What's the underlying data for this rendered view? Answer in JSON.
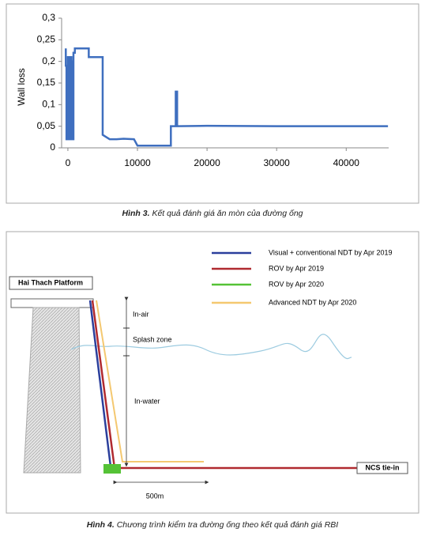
{
  "chart_data": {
    "type": "line",
    "y_label": "Wall loss",
    "xlim": [
      -900,
      46100
    ],
    "ylim": [
      0,
      0.3
    ],
    "xticks": [
      0,
      10000,
      20000,
      30000,
      40000
    ],
    "yticks": [
      0,
      {
        "value": 0.05,
        "label": "0,05"
      },
      {
        "value": 0.1,
        "label": "0,1"
      },
      {
        "value": 0.15,
        "label": "0,15"
      },
      {
        "value": 0.2,
        "label": "0,2"
      },
      {
        "value": 0.25,
        "label": "0,25"
      },
      {
        "value": 0.3,
        "label": "0,3"
      }
    ],
    "x": [
      -300,
      -300,
      -200,
      -200,
      0,
      0,
      100,
      100,
      300,
      300,
      500,
      500,
      600,
      600,
      700,
      700,
      800,
      800,
      1000,
      1000,
      3000,
      3000,
      5000,
      5000,
      6000,
      7000,
      8000,
      9500,
      10000,
      14800,
      14800,
      15500,
      15500,
      15700,
      15700,
      20000,
      30000,
      46000
    ],
    "series": [
      {
        "color": "#3f6fbf",
        "values": [
          0.23,
          0.19,
          0.19,
          0.02,
          0.02,
          0.21,
          0.21,
          0.02,
          0.02,
          0.21,
          0.21,
          0.02,
          0.02,
          0.2,
          0.2,
          0.02,
          0.02,
          0.22,
          0.22,
          0.23,
          0.23,
          0.21,
          0.21,
          0.03,
          0.02,
          0.02,
          0.021,
          0.02,
          0.005,
          0.005,
          0.05,
          0.05,
          0.13,
          0.13,
          0.05,
          0.051,
          0.05,
          0.05
        ]
      }
    ]
  },
  "captions": [
    {
      "label": "Hình 3.",
      "text": "Kết quả đánh giá ăn mòn của đường ống"
    },
    {
      "label": "Hình 4.",
      "text": "Chương trình kiểm tra đường ống theo kết quả đánh giá RBI"
    }
  ],
  "diagram": {
    "platform": "Hai Thach Platform",
    "in_air": "In-air",
    "splash_zone": "Splash zone",
    "in_water": "In-water",
    "distance": "500m",
    "tie_in": "NCS tie-in",
    "legend": [
      {
        "name": "Visual + conventional NDT by Apr 2019",
        "color": "#2b3f9c"
      },
      {
        "name": "ROV by Apr 2019",
        "color": "#b02a30"
      },
      {
        "name": "ROV by Apr 2020",
        "color": "#55c236"
      },
      {
        "name": "Advanced NDT by Apr 2020",
        "color": "#f4c870"
      }
    ]
  }
}
